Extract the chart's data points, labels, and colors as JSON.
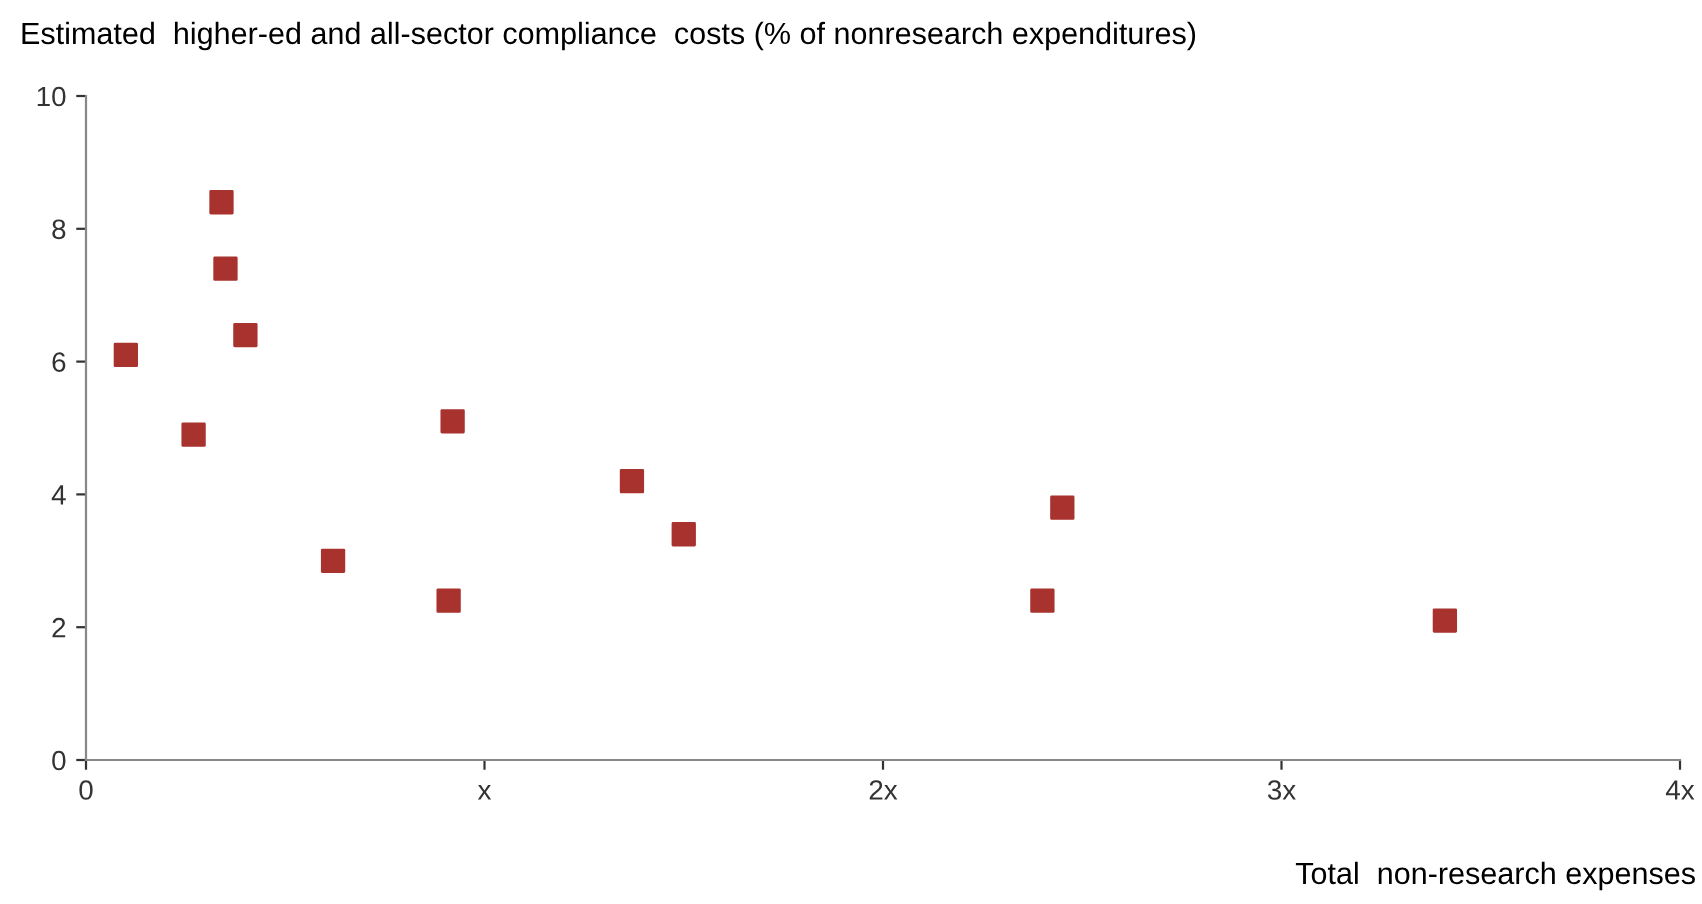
{
  "chart_data": {
    "type": "scatter",
    "title": "Estimated  higher-ed and all-sector compliance  costs (% of nonresearch expenditures)",
    "xlabel": "Total  non-research expenses",
    "x": [
      0.1,
      0.34,
      0.35,
      0.4,
      0.27,
      0.62,
      0.92,
      0.91,
      1.37,
      1.5,
      2.4,
      2.45,
      3.41
    ],
    "values": [
      6.1,
      8.4,
      7.4,
      6.4,
      4.9,
      3.0,
      5.1,
      2.4,
      4.2,
      3.4,
      2.4,
      3.8,
      2.1
    ],
    "color": "#a8322d",
    "marker": "square",
    "xlim": [
      0,
      4
    ],
    "xticks": [
      0,
      {
        "value": 1,
        "label": "x"
      },
      {
        "value": 2,
        "label": "2x"
      },
      {
        "value": 3,
        "label": "3x"
      },
      {
        "value": 4,
        "label": "4x"
      }
    ],
    "ylim": [
      0,
      10
    ],
    "yticks": [
      0,
      2,
      4,
      6,
      8,
      10
    ],
    "grid": false,
    "legend": false
  }
}
